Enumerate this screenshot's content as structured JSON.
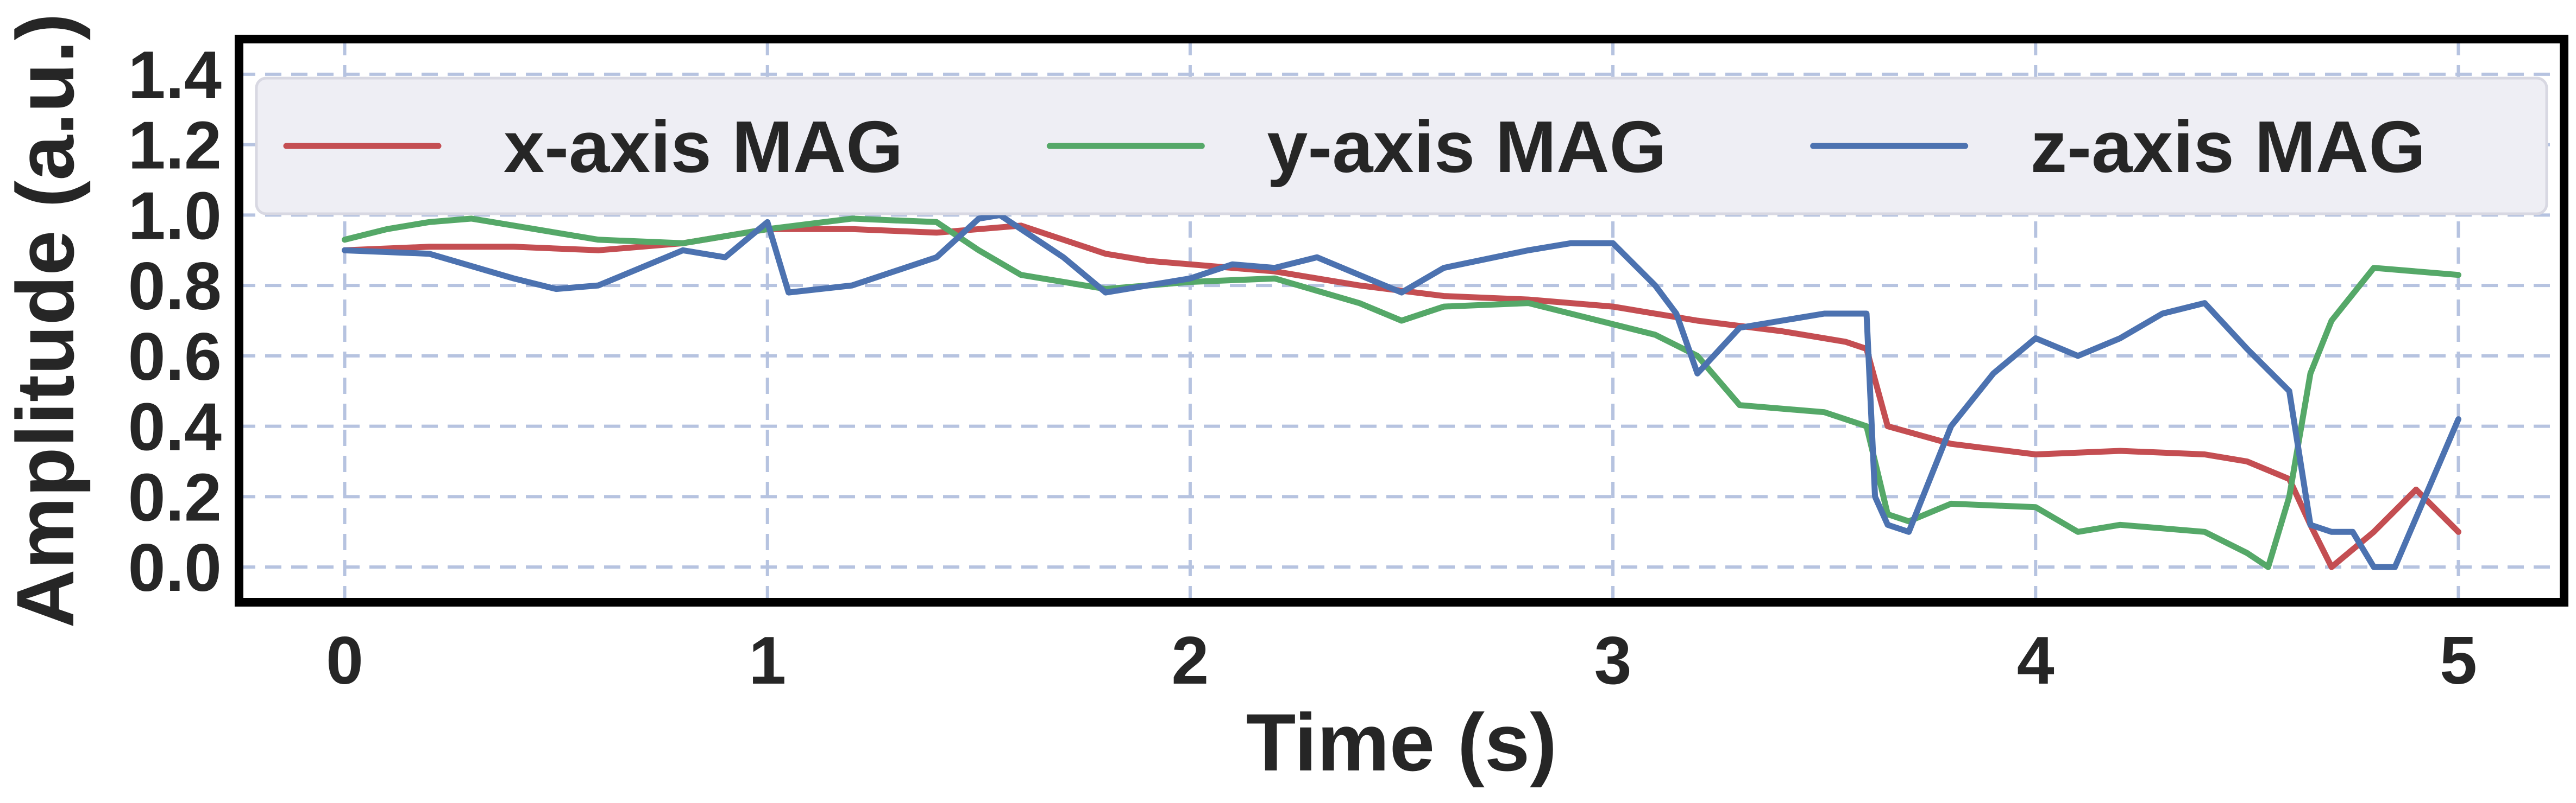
{
  "chart_data": {
    "type": "line",
    "title": "",
    "xlabel": "Time (s)",
    "ylabel": "Amplitude (a.u.)",
    "xlim": [
      -0.25,
      5.25
    ],
    "ylim": [
      -0.1,
      1.5
    ],
    "xticks": [
      0,
      1,
      2,
      3,
      4,
      5
    ],
    "xtick_labels": [
      "0",
      "1",
      "2",
      "3",
      "4",
      "5"
    ],
    "yticks": [
      0.0,
      0.2,
      0.4,
      0.6,
      0.8,
      1.0,
      1.2,
      1.4
    ],
    "ytick_labels": [
      "0.0",
      "0.2",
      "0.4",
      "0.6",
      "0.8",
      "1.0",
      "1.2",
      "1.4"
    ],
    "grid": true,
    "legend": {
      "placement": "top",
      "columns": 3
    },
    "colors": {
      "x": "#c44e52",
      "y": "#55a868",
      "z": "#4c72b0",
      "grid": "#b6c3e0",
      "frame": "#000000",
      "legend_bg": "#eeeef4"
    },
    "series": [
      {
        "name": "x-axis MAG",
        "color": "#c44e52",
        "x": [
          0,
          0.2,
          0.4,
          0.6,
          0.8,
          0.9,
          1.0,
          1.2,
          1.4,
          1.5,
          1.6,
          1.7,
          1.8,
          1.9,
          2.0,
          2.2,
          2.4,
          2.6,
          2.8,
          3.0,
          3.2,
          3.4,
          3.55,
          3.6,
          3.65,
          3.8,
          4.0,
          4.2,
          4.4,
          4.5,
          4.6,
          4.65,
          4.7,
          4.8,
          4.9,
          5.0
        ],
        "y": [
          0.9,
          0.91,
          0.91,
          0.9,
          0.92,
          0.94,
          0.96,
          0.96,
          0.95,
          0.96,
          0.97,
          0.93,
          0.89,
          0.87,
          0.86,
          0.84,
          0.8,
          0.77,
          0.76,
          0.74,
          0.7,
          0.67,
          0.64,
          0.62,
          0.4,
          0.35,
          0.32,
          0.33,
          0.32,
          0.3,
          0.25,
          0.12,
          0.0,
          0.1,
          0.22,
          0.1
        ]
      },
      {
        "name": "y-axis MAG",
        "color": "#55a868",
        "x": [
          0,
          0.1,
          0.2,
          0.3,
          0.4,
          0.6,
          0.8,
          1.0,
          1.2,
          1.4,
          1.5,
          1.6,
          1.7,
          1.8,
          2.0,
          2.2,
          2.4,
          2.5,
          2.6,
          2.8,
          3.0,
          3.1,
          3.2,
          3.3,
          3.5,
          3.6,
          3.65,
          3.7,
          3.8,
          4.0,
          4.1,
          4.2,
          4.4,
          4.5,
          4.55,
          4.6,
          4.65,
          4.7,
          4.8,
          4.9,
          5.0
        ],
        "y": [
          0.93,
          0.96,
          0.98,
          0.99,
          0.97,
          0.93,
          0.92,
          0.96,
          0.99,
          0.98,
          0.9,
          0.83,
          0.81,
          0.79,
          0.81,
          0.82,
          0.75,
          0.7,
          0.74,
          0.75,
          0.69,
          0.66,
          0.6,
          0.46,
          0.44,
          0.4,
          0.15,
          0.13,
          0.18,
          0.17,
          0.1,
          0.12,
          0.1,
          0.04,
          0.0,
          0.2,
          0.55,
          0.7,
          0.85,
          0.84,
          0.83
        ]
      },
      {
        "name": "z-axis MAG",
        "color": "#4c72b0",
        "x": [
          0,
          0.2,
          0.4,
          0.5,
          0.6,
          0.7,
          0.8,
          0.9,
          1.0,
          1.05,
          1.2,
          1.4,
          1.5,
          1.55,
          1.6,
          1.7,
          1.8,
          1.9,
          2.0,
          2.1,
          2.2,
          2.3,
          2.4,
          2.5,
          2.6,
          2.8,
          2.9,
          3.0,
          3.1,
          3.15,
          3.2,
          3.3,
          3.5,
          3.6,
          3.62,
          3.65,
          3.7,
          3.8,
          3.9,
          4.0,
          4.1,
          4.2,
          4.3,
          4.4,
          4.5,
          4.6,
          4.65,
          4.7,
          4.75,
          4.8,
          4.85,
          5.0
        ],
        "y": [
          0.9,
          0.89,
          0.82,
          0.79,
          0.8,
          0.85,
          0.9,
          0.88,
          0.98,
          0.78,
          0.8,
          0.88,
          0.99,
          1.0,
          0.96,
          0.88,
          0.78,
          0.8,
          0.82,
          0.86,
          0.85,
          0.88,
          0.83,
          0.78,
          0.85,
          0.9,
          0.92,
          0.92,
          0.8,
          0.72,
          0.55,
          0.68,
          0.72,
          0.72,
          0.2,
          0.12,
          0.1,
          0.4,
          0.55,
          0.65,
          0.6,
          0.65,
          0.72,
          0.75,
          0.62,
          0.5,
          0.12,
          0.1,
          0.1,
          0.0,
          0.0,
          0.42
        ]
      }
    ]
  }
}
